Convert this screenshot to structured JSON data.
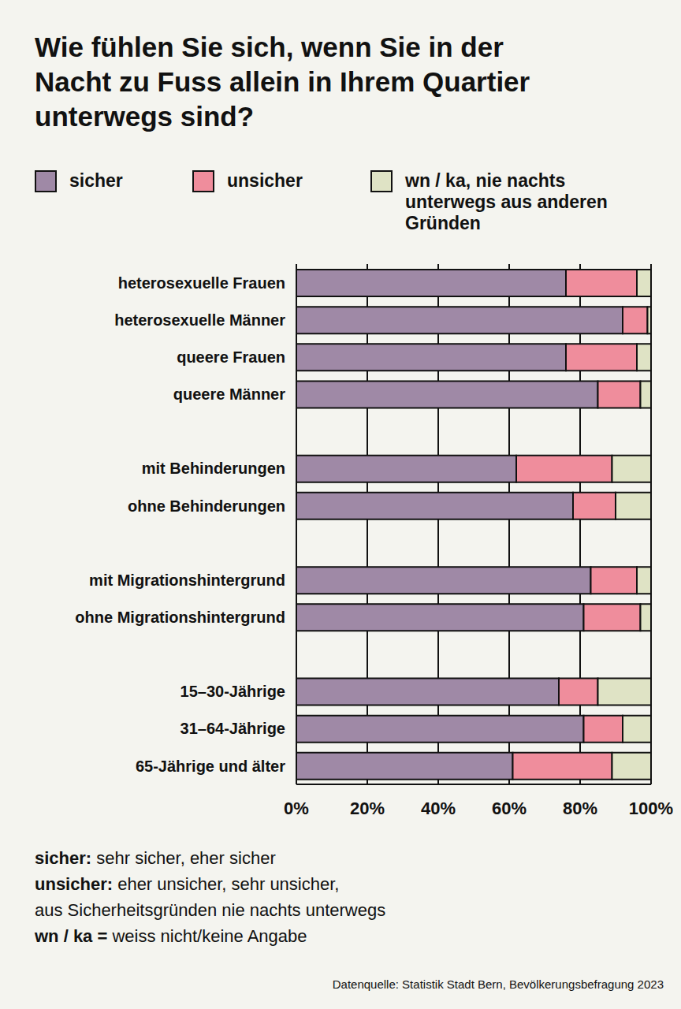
{
  "chart_data": {
    "type": "bar",
    "title": [
      "Wie fühlen Sie sich, wenn Sie in der",
      "Nacht zu Fuss allein in Ihrem Quartier",
      "unterwegs sind?"
    ],
    "orientation": "horizontal",
    "stacked": true,
    "grid": true,
    "legend": "top",
    "categories": [
      "heterosexuelle Frauen",
      "heterosexuelle Männer",
      "queere Frauen",
      "queere Männer",
      null,
      "mit Behinderungen",
      "ohne Behinderungen",
      null,
      "mit Migrationshintergrund",
      "ohne Migrationshintergrund",
      null,
      "15–30-Jährige",
      "31–64-Jährige",
      "65-Jährige und älter"
    ],
    "series": [
      {
        "name": "sicher",
        "color": "#9f89a6",
        "values": [
          76,
          92,
          76,
          85,
          null,
          62,
          78,
          null,
          83,
          81,
          null,
          74,
          81,
          61
        ]
      },
      {
        "name": "unsicher",
        "color": "#ef8d9c",
        "values": [
          20,
          7,
          20,
          12,
          null,
          27,
          12,
          null,
          13,
          16,
          null,
          11,
          11,
          28
        ]
      },
      {
        "name": "wn / ka, nie nachts unterwegs aus anderen Gründen",
        "color": "#dfe3c5",
        "values": [
          4,
          1,
          4,
          3,
          null,
          11,
          10,
          null,
          4,
          3,
          null,
          15,
          8,
          11
        ]
      }
    ],
    "xlim": [
      0,
      100
    ],
    "xticks": [
      {
        "value": 0,
        "label": "0%"
      },
      {
        "value": 20,
        "label": "20%"
      },
      {
        "value": 40,
        "label": "40%"
      },
      {
        "value": 60,
        "label": "60%"
      },
      {
        "value": 80,
        "label": "80%"
      },
      {
        "value": 100,
        "label": "100%"
      }
    ],
    "notes": [
      {
        "term": "sicher:",
        "text": [
          "sehr sicher, eher sicher"
        ]
      },
      {
        "term": "unsicher:",
        "text": [
          "eher unsicher, sehr unsicher,",
          "aus Sicherheitsgründen nie nachts unterwegs"
        ]
      },
      {
        "term": "wn / ka =",
        "text": [
          "weiss nicht/keine Angabe"
        ]
      }
    ],
    "source": "Datenquelle: Statistik Stadt Bern, Bevölkerungsbefragung 2023"
  }
}
